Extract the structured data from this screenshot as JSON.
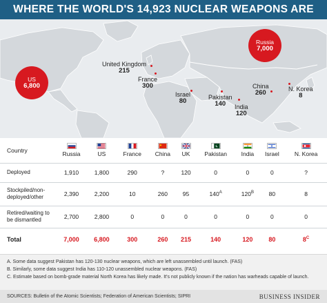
{
  "title": "WHERE THE WORLD'S 14,923 NUCLEAR WEAPONS ARE",
  "map": {
    "labels": {
      "us": {
        "name": "US",
        "value": "6,800"
      },
      "russia": {
        "name": "Russia",
        "value": "7,000"
      },
      "uk": {
        "name": "United Kingdom",
        "value": "215"
      },
      "france": {
        "name": "France",
        "value": "300"
      },
      "israel": {
        "name": "Israel",
        "value": "80"
      },
      "pakistan": {
        "name": "Pakistan",
        "value": "140"
      },
      "india": {
        "name": "India",
        "value": "120"
      },
      "china": {
        "name": "China",
        "value": "260"
      },
      "nkorea": {
        "name": "N. Korea",
        "value": "8"
      }
    }
  },
  "table": {
    "country_header": "Country",
    "countries": [
      "Russia",
      "US",
      "France",
      "China",
      "UK",
      "Pakistan",
      "India",
      "Israel",
      "N. Korea"
    ],
    "rows": [
      {
        "label": "Deployed",
        "values": [
          "1,910",
          "1,800",
          "290",
          "?",
          "120",
          "0",
          "0",
          "0",
          "?"
        ]
      },
      {
        "label": "Stockpiled/non-deployed/other",
        "values": [
          "2,390",
          "2,200",
          "10",
          "260",
          "95",
          "140",
          "120",
          "80",
          "8"
        ]
      },
      {
        "label": "Retired/waiting to be dismantled",
        "values": [
          "2,700",
          "2,800",
          "0",
          "0",
          "0",
          "0",
          "0",
          "0",
          "0"
        ]
      },
      {
        "label": "Total",
        "values": [
          "7,000",
          "6,800",
          "300",
          "260",
          "215",
          "140",
          "120",
          "80",
          "8"
        ]
      }
    ],
    "superscripts": {
      "pakistan_stock": "A",
      "india_stock": "B",
      "nkorea_total": "C"
    }
  },
  "chart_data": {
    "type": "table",
    "title": "WHERE THE WORLD'S 14,923 NUCLEAR WEAPONS ARE",
    "categories": [
      "Russia",
      "US",
      "France",
      "China",
      "UK",
      "Pakistan",
      "India",
      "Israel",
      "N. Korea"
    ],
    "series": [
      {
        "name": "Deployed",
        "values": [
          1910,
          1800,
          290,
          null,
          120,
          0,
          0,
          0,
          null
        ]
      },
      {
        "name": "Stockpiled/non-deployed/other",
        "values": [
          2390,
          2200,
          10,
          260,
          95,
          140,
          120,
          80,
          8
        ]
      },
      {
        "name": "Retired/waiting to be dismantled",
        "values": [
          2700,
          2800,
          0,
          0,
          0,
          0,
          0,
          0,
          0
        ]
      },
      {
        "name": "Total",
        "values": [
          7000,
          6800,
          300,
          260,
          215,
          140,
          120,
          80,
          8
        ]
      }
    ]
  },
  "notes": {
    "a": "A. Some data suggest Pakistan has 120-130 nuclear weapons, which are left unassembled until launch. (FAS)",
    "b": "B. Similarly, some data suggest India has 110-120 unassembled nuclear weapons. (FAS)",
    "c": "C. Estimate based on bomb-grade material North Korea has likely made. It's not publicly known if the nation has warheads capable of launch."
  },
  "footer": {
    "sources": "SOURCES: Bulletin of the Atomic Scientists; Federation of American Scientists; SIPRI",
    "brand": "BUSINESS INSIDER"
  },
  "colors": {
    "title_bg": "#1f5f85",
    "accent": "#d71920",
    "land": "#d4d8dc",
    "water": "#e9ecef"
  }
}
